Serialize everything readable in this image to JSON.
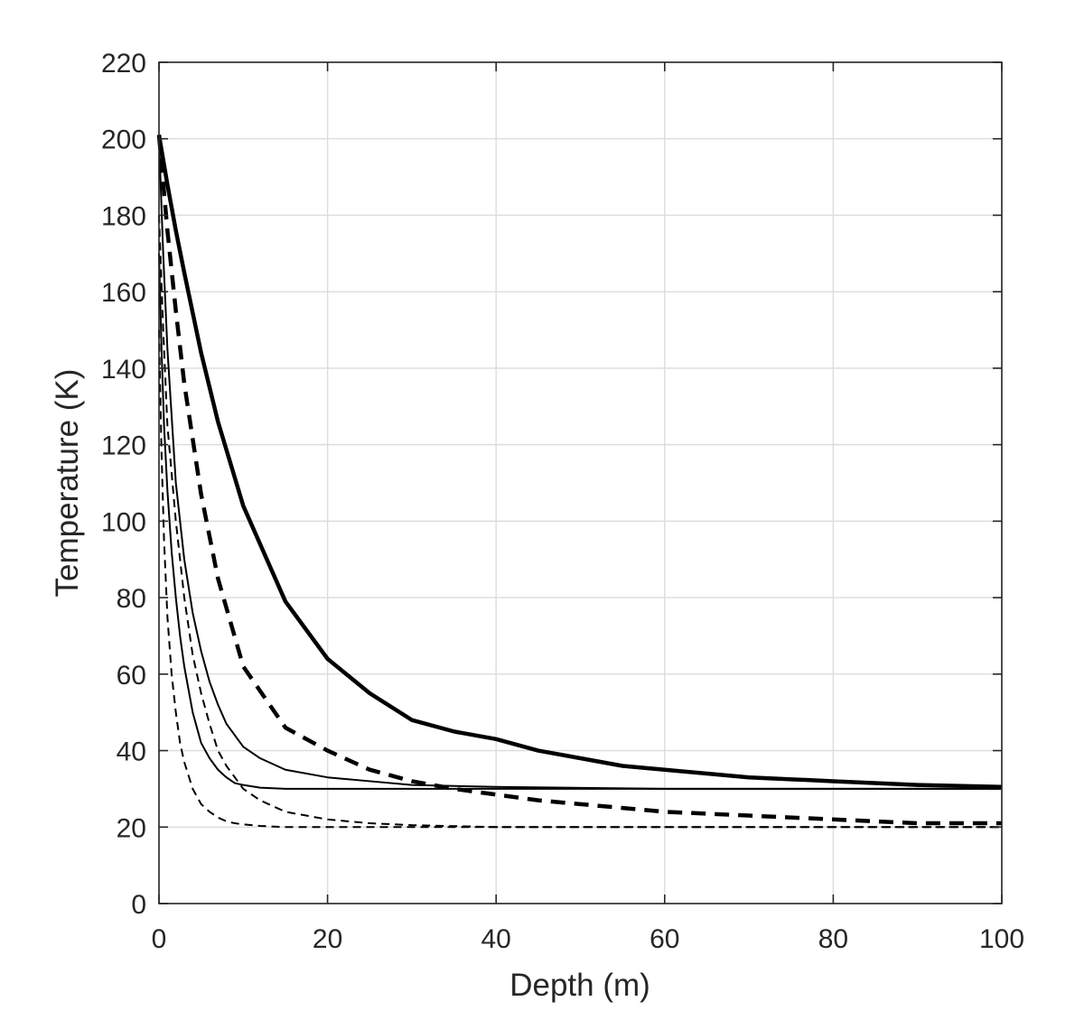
{
  "chart_data": {
    "type": "line",
    "title": "",
    "xlabel": "Depth (m)",
    "ylabel": "Temperature (K)",
    "xlim": [
      0,
      100
    ],
    "ylim": [
      0,
      220
    ],
    "xticks": [
      0,
      20,
      40,
      60,
      80,
      100
    ],
    "yticks": [
      0,
      20,
      40,
      60,
      80,
      100,
      120,
      140,
      160,
      180,
      200,
      220
    ],
    "xtick_labels": [
      "0",
      "20",
      "40",
      "60",
      "80",
      "100"
    ],
    "ytick_labels": [
      "0",
      "20",
      "40",
      "60",
      "80",
      "100",
      "120",
      "140",
      "160",
      "180",
      "200",
      "220"
    ],
    "grid": true,
    "legend": "none",
    "line_color": "#000000",
    "series": [
      {
        "style": "solid-thick",
        "x": [
          0,
          1,
          2,
          3,
          5,
          7,
          10,
          15,
          20,
          25,
          30,
          35,
          40,
          45,
          50,
          55,
          60,
          70,
          80,
          90,
          100
        ],
        "y": [
          201,
          188,
          176,
          165,
          144,
          126,
          104,
          79,
          64,
          55,
          48,
          45,
          43,
          40,
          38,
          36,
          35,
          33,
          32,
          31,
          30.5
        ]
      },
      {
        "style": "dashed-thick",
        "x": [
          0,
          1,
          2,
          3,
          5,
          7,
          10,
          15,
          20,
          25,
          30,
          35,
          40,
          45,
          50,
          55,
          60,
          70,
          80,
          90,
          100
        ],
        "y": [
          201,
          176,
          155,
          136,
          107,
          85,
          62,
          46,
          40,
          35,
          32,
          30,
          28.5,
          27,
          26,
          25,
          24,
          23,
          22,
          21,
          21
        ]
      },
      {
        "style": "solid-thin",
        "x": [
          0,
          0.5,
          1,
          2,
          3,
          4,
          5,
          6,
          7,
          8,
          10,
          12,
          15,
          20,
          25,
          30,
          40,
          60,
          80,
          100
        ],
        "y": [
          200,
          170,
          145,
          110,
          90,
          76,
          66,
          58,
          52,
          47,
          41,
          38,
          35,
          33,
          32,
          31,
          30.5,
          30,
          30,
          30
        ]
      },
      {
        "style": "dashed-thin",
        "x": [
          0,
          0.5,
          1,
          2,
          3,
          4,
          5,
          6,
          7,
          8,
          10,
          12,
          15,
          20,
          25,
          30,
          40,
          60,
          80,
          100
        ],
        "y": [
          180,
          150,
          125,
          100,
          80,
          65,
          55,
          47,
          40,
          36,
          30,
          27,
          24,
          22,
          21,
          20.5,
          20,
          20,
          20,
          20
        ]
      },
      {
        "style": "solid-thin",
        "x": [
          0,
          0.3,
          0.6,
          1,
          1.5,
          2,
          2.5,
          3,
          4,
          5,
          6,
          7,
          8,
          9,
          10,
          12,
          15,
          20,
          40,
          60,
          80,
          100
        ],
        "y": [
          170,
          145,
          125,
          108,
          92,
          80,
          70,
          62,
          50,
          42,
          38,
          35,
          33,
          31.5,
          31,
          30.3,
          30,
          30,
          30,
          30,
          30,
          30
        ]
      },
      {
        "style": "dashed-thin",
        "x": [
          0,
          0.3,
          0.6,
          1,
          1.5,
          2,
          2.5,
          3,
          4,
          5,
          6,
          7,
          8,
          9,
          10,
          12,
          15,
          20,
          40,
          60,
          80,
          100
        ],
        "y": [
          150,
          118,
          95,
          75,
          60,
          50,
          42,
          37,
          30,
          26,
          24,
          22.5,
          21.5,
          21,
          20.7,
          20.3,
          20,
          20,
          20,
          20,
          20,
          20
        ]
      }
    ]
  }
}
